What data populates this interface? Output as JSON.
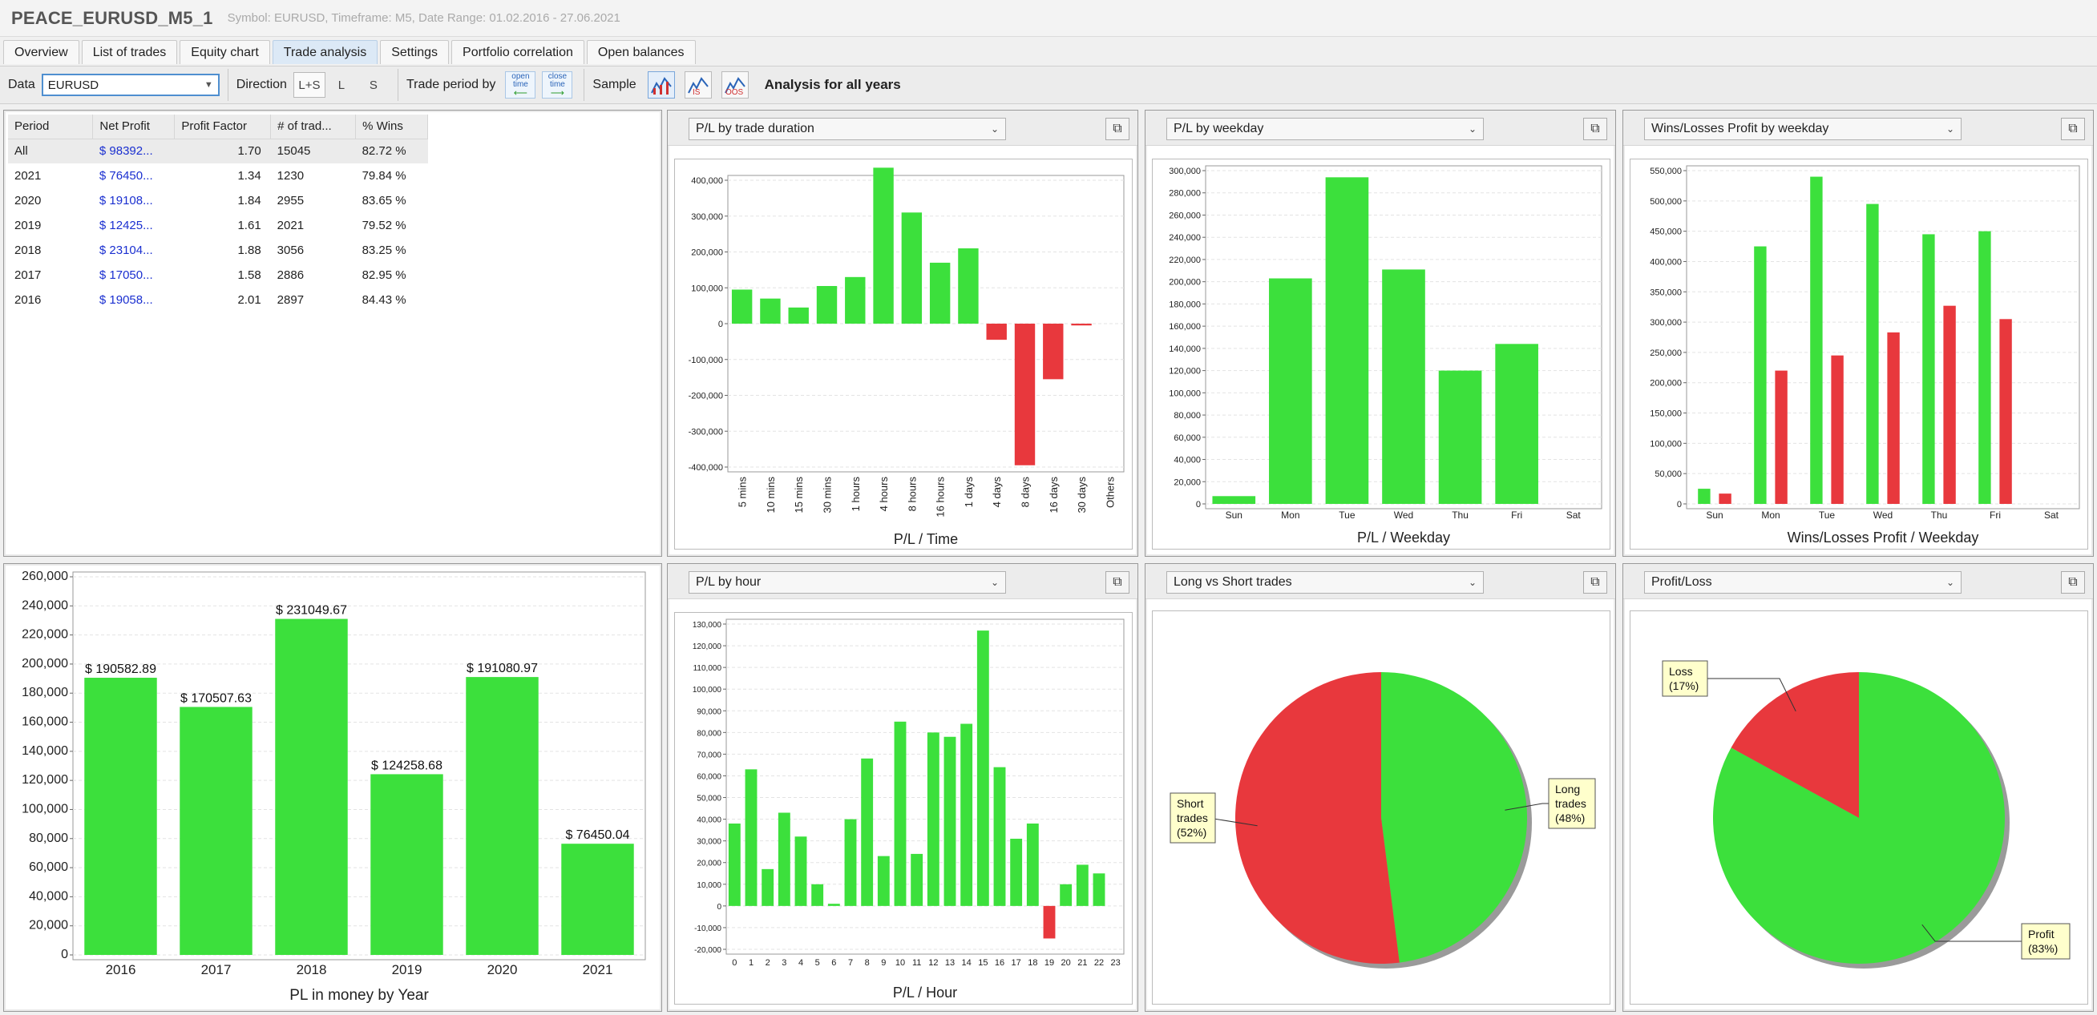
{
  "window": {
    "title": "PEACE_EURUSD_M5_1",
    "subtitle": "Symbol: EURUSD, Timeframe: M5, Date Range: 01.02.2016 - 27.06.2021"
  },
  "tabs": [
    {
      "label": "Overview"
    },
    {
      "label": "List of trades"
    },
    {
      "label": "Equity chart"
    },
    {
      "label": "Trade analysis",
      "active": true
    },
    {
      "label": "Settings"
    },
    {
      "label": "Portfolio correlation"
    },
    {
      "label": "Open balances"
    }
  ],
  "toolbar": {
    "data_label": "Data",
    "data_value": "EURUSD",
    "direction_label": "Direction",
    "direction_options": [
      "L+S",
      "L",
      "S"
    ],
    "trade_period_label": "Trade period by",
    "open_time_label": "open time",
    "close_time_label": "close time",
    "sample_label": "Sample",
    "analysis_label": "Analysis for all years"
  },
  "table": {
    "headers": [
      "Period",
      "Net Profit",
      "Profit Factor",
      "# of trad...",
      "% Wins"
    ],
    "rows": [
      [
        "All",
        "$ 98392...",
        "1.70",
        "15045",
        "82.72 %"
      ],
      [
        "2021",
        "$ 76450...",
        "1.34",
        "1230",
        "79.84 %"
      ],
      [
        "2020",
        "$ 19108...",
        "1.84",
        "2955",
        "83.65 %"
      ],
      [
        "2019",
        "$ 12425...",
        "1.61",
        "2021",
        "79.52 %"
      ],
      [
        "2018",
        "$ 23104...",
        "1.88",
        "3056",
        "83.25 %"
      ],
      [
        "2017",
        "$ 17050...",
        "1.58",
        "2886",
        "82.95 %"
      ],
      [
        "2016",
        "$ 19058...",
        "2.01",
        "2897",
        "84.43 %"
      ]
    ]
  },
  "panels": {
    "duration": {
      "select": "P/L by trade duration",
      "caption": "P/L / Time"
    },
    "weekday": {
      "select": "P/L by weekday",
      "caption": "P/L / Weekday"
    },
    "winloss": {
      "select": "Wins/Losses Profit by weekday",
      "caption": "Wins/Losses Profit / Weekday"
    },
    "year": {
      "caption": "PL in money by Year"
    },
    "hour": {
      "select": "P/L by hour",
      "caption": "P/L / Hour"
    },
    "longshort": {
      "select": "Long vs Short trades"
    },
    "profitloss": {
      "select": "Profit/Loss"
    }
  },
  "colors": {
    "green": "#3ce03c",
    "red": "#e8383d",
    "label_bg": "#ffffcc"
  },
  "chart_data": [
    {
      "id": "duration",
      "type": "bar",
      "categories": [
        "5 mins",
        "10 mins",
        "15 mins",
        "30 mins",
        "1 hours",
        "4 hours",
        "8 hours",
        "16 hours",
        "1 days",
        "4 days",
        "8 days",
        "16 days",
        "30 days",
        "Others"
      ],
      "values": [
        95000,
        70000,
        45000,
        105000,
        130000,
        435000,
        310000,
        170000,
        210000,
        -45000,
        -395000,
        -155000,
        -5000,
        0
      ],
      "xlabel": "P/L / Time",
      "ylim": [
        -400000,
        400000
      ],
      "yticks": [
        "400,000",
        "300,000",
        "200,000",
        "100,000",
        "0",
        "-100,000",
        "-200,000",
        "-300,000",
        "-400,000"
      ],
      "ytick_values": [
        400000,
        300000,
        200000,
        100000,
        0,
        -100000,
        -200000,
        -300000,
        -400000
      ]
    },
    {
      "id": "weekday",
      "type": "bar",
      "categories": [
        "Sun",
        "Mon",
        "Tue",
        "Wed",
        "Thu",
        "Fri",
        "Sat"
      ],
      "values": [
        7000,
        203000,
        294000,
        211000,
        120000,
        144000,
        0
      ],
      "xlabel": "P/L / Weekday",
      "ylim": [
        0,
        300000
      ],
      "yticks": [
        "300,000",
        "280,000",
        "260,000",
        "240,000",
        "220,000",
        "200,000",
        "180,000",
        "160,000",
        "140,000",
        "120,000",
        "100,000",
        "80,000",
        "60,000",
        "40,000",
        "20,000",
        "0"
      ],
      "ytick_values": [
        300000,
        280000,
        260000,
        240000,
        220000,
        200000,
        180000,
        160000,
        140000,
        120000,
        100000,
        80000,
        60000,
        40000,
        20000,
        0
      ]
    },
    {
      "id": "winloss",
      "type": "bar",
      "categories": [
        "Sun",
        "Mon",
        "Tue",
        "Wed",
        "Thu",
        "Fri",
        "Sat"
      ],
      "series": [
        {
          "values": [
            25000,
            425000,
            540000,
            495000,
            445000,
            450000,
            0
          ]
        },
        {
          "values": [
            17000,
            220000,
            245000,
            283000,
            327000,
            305000,
            0
          ]
        }
      ],
      "xlabel": "Wins/Losses Profit / Weekday",
      "ylim": [
        0,
        550000
      ],
      "yticks": [
        "550,000",
        "500,000",
        "450,000",
        "400,000",
        "350,000",
        "300,000",
        "250,000",
        "200,000",
        "150,000",
        "100,000",
        "50,000",
        "0"
      ],
      "ytick_values": [
        550000,
        500000,
        450000,
        400000,
        350000,
        300000,
        250000,
        200000,
        150000,
        100000,
        50000,
        0
      ]
    },
    {
      "id": "year",
      "type": "bar",
      "categories": [
        "2016",
        "2017",
        "2018",
        "2019",
        "2020",
        "2021"
      ],
      "values": [
        190582.89,
        170507.63,
        231049.67,
        124258.68,
        191080.97,
        76450.04
      ],
      "data_labels": [
        "$ 190582.89",
        "$ 170507.63",
        "$ 231049.67",
        "$ 124258.68",
        "$ 191080.97",
        "$ 76450.04"
      ],
      "xlabel": "PL in money by Year",
      "ylim": [
        0,
        260000
      ],
      "yticks": [
        "260,000",
        "240,000",
        "220,000",
        "200,000",
        "180,000",
        "160,000",
        "140,000",
        "120,000",
        "100,000",
        "80,000",
        "60,000",
        "40,000",
        "20,000",
        "0"
      ],
      "ytick_values": [
        260000,
        240000,
        220000,
        200000,
        180000,
        160000,
        140000,
        120000,
        100000,
        80000,
        60000,
        40000,
        20000,
        0
      ]
    },
    {
      "id": "hour",
      "type": "bar",
      "categories": [
        "0",
        "1",
        "2",
        "3",
        "4",
        "5",
        "6",
        "7",
        "8",
        "9",
        "10",
        "11",
        "12",
        "13",
        "14",
        "15",
        "16",
        "17",
        "18",
        "19",
        "20",
        "21",
        "22",
        "23"
      ],
      "values": [
        38000,
        63000,
        17000,
        43000,
        32000,
        10000,
        1000,
        40000,
        68000,
        23000,
        85000,
        24000,
        80000,
        78000,
        84000,
        127000,
        64000,
        31000,
        38000,
        -15000,
        10000,
        19000,
        15000,
        0
      ],
      "xlabel": "P/L / Hour",
      "ylim": [
        -20000,
        130000
      ],
      "yticks": [
        "130,000",
        "120,000",
        "110,000",
        "100,000",
        "90,000",
        "80,000",
        "70,000",
        "60,000",
        "50,000",
        "40,000",
        "30,000",
        "20,000",
        "10,000",
        "0",
        "-10,000",
        "-20,000"
      ],
      "ytick_values": [
        130000,
        120000,
        110000,
        100000,
        90000,
        80000,
        70000,
        60000,
        50000,
        40000,
        30000,
        20000,
        10000,
        0,
        -10000,
        -20000
      ]
    },
    {
      "id": "longshort",
      "type": "pie",
      "slices": [
        {
          "label": "Long trades (48%)",
          "lines": [
            "Long",
            "trades",
            "(48%)"
          ],
          "value": 48
        },
        {
          "label": "Short trades (52%)",
          "lines": [
            "Short",
            "trades",
            "(52%)"
          ],
          "value": 52
        }
      ]
    },
    {
      "id": "profitloss",
      "type": "pie",
      "slices": [
        {
          "label": "Loss (17%)",
          "lines": [
            "Loss",
            "(17%)"
          ],
          "value": 17
        },
        {
          "label": "Profit (83%)",
          "lines": [
            "Profit",
            "(83%)"
          ],
          "value": 83
        }
      ]
    }
  ]
}
